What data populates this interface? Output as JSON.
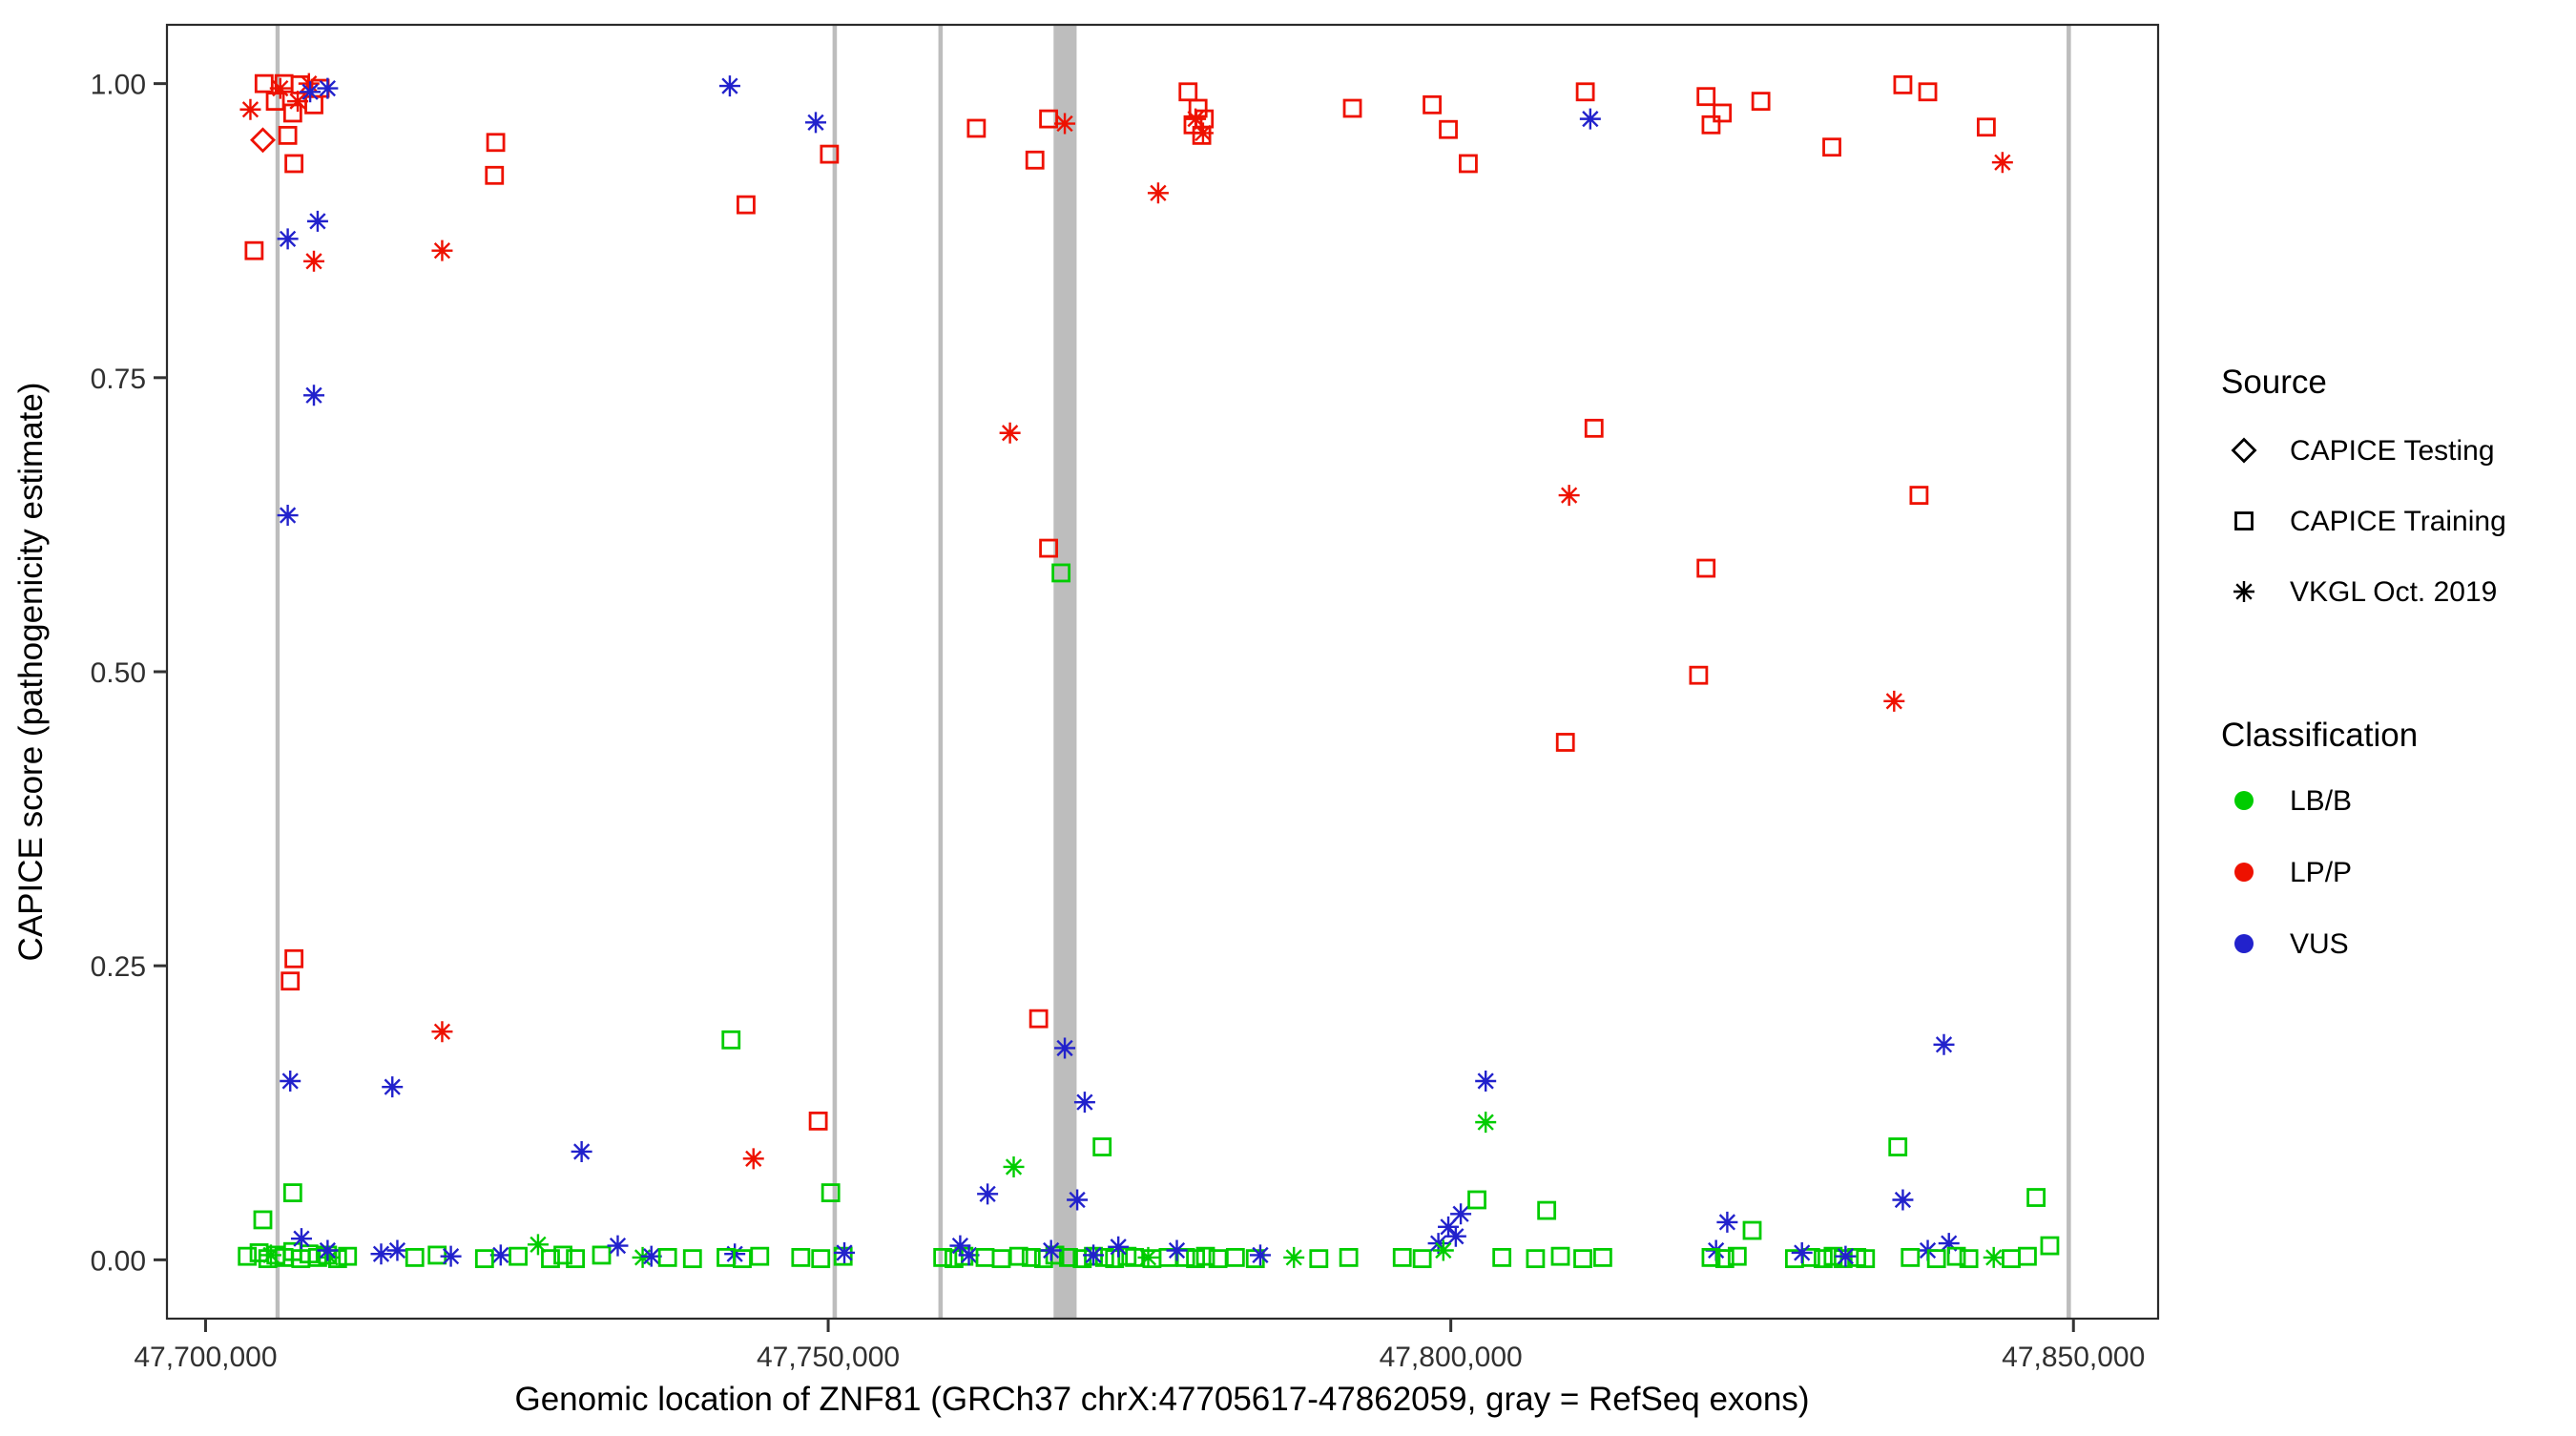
{
  "chart_data": {
    "type": "scatter",
    "title": "",
    "xlabel": "Genomic location of ZNF81 (GRCh37 chrX:47705617-47862059, gray = RefSeq exons)",
    "ylabel": "CAPICE score (pathogenicity estimate)",
    "xlim": [
      47696900,
      47856800
    ],
    "ylim": [
      -0.05,
      1.05
    ],
    "grid": false,
    "x_ticks": [
      {
        "value": 47700000,
        "label": "47,700,000"
      },
      {
        "value": 47750000,
        "label": "47,750,000"
      },
      {
        "value": 47800000,
        "label": "47,800,000"
      },
      {
        "value": 47850000,
        "label": "47,850,000"
      }
    ],
    "y_ticks": [
      {
        "value": 0.0,
        "label": "0.00"
      },
      {
        "value": 0.25,
        "label": "0.25"
      },
      {
        "value": 0.5,
        "label": "0.50"
      },
      {
        "value": 0.75,
        "label": "0.75"
      },
      {
        "value": 1.0,
        "label": "1.00"
      }
    ],
    "exon_color": "#bdbdbd",
    "exons": [
      {
        "start": 47705617,
        "end": 47705950
      },
      {
        "start": 47750350,
        "end": 47750700
      },
      {
        "start": 47758850,
        "end": 47759200
      },
      {
        "start": 47768100,
        "end": 47769950
      },
      {
        "start": 47849450,
        "end": 47849800
      }
    ],
    "colors": {
      "B": "#00CC00",
      "P": "#EE1100",
      "U": "#2222CC"
    },
    "class_labels": {
      "B": "LB/B",
      "P": "LP/P",
      "U": "VUS"
    },
    "marker_map": {
      "test": "diamond",
      "train": "square",
      "vkgl": "asterisk"
    },
    "legend": {
      "source": {
        "title": "Source",
        "items": [
          {
            "label": "CAPICE Testing",
            "marker": "diamond"
          },
          {
            "label": "CAPICE Training",
            "marker": "square"
          },
          {
            "label": "VKGL Oct. 2019",
            "marker": "asterisk"
          }
        ]
      },
      "classification": {
        "title": "Classification",
        "items": [
          {
            "label": "LB/B",
            "code": "B"
          },
          {
            "label": "LP/P",
            "code": "P"
          },
          {
            "label": "VUS",
            "code": "U"
          }
        ]
      }
    },
    "points_format": [
      "genomic_position",
      "capice_score",
      "source",
      "classification"
    ],
    "points": [
      [
        47704700,
        1.0,
        "train",
        "P"
      ],
      [
        47706300,
        1.0,
        "train",
        "P"
      ],
      [
        47707600,
        0.999,
        "train",
        "P"
      ],
      [
        47709200,
        0.996,
        "train",
        "P"
      ],
      [
        47705600,
        0.985,
        "train",
        "P"
      ],
      [
        47708700,
        0.982,
        "train",
        "P"
      ],
      [
        47707000,
        0.975,
        "train",
        "P"
      ],
      [
        47706600,
        0.956,
        "train",
        "P"
      ],
      [
        47707100,
        0.932,
        "train",
        "P"
      ],
      [
        47703600,
        0.978,
        "vkgl",
        "P"
      ],
      [
        47706000,
        0.996,
        "vkgl",
        "P"
      ],
      [
        47708300,
        1.0,
        "vkgl",
        "P"
      ],
      [
        47707400,
        0.985,
        "vkgl",
        "P"
      ],
      [
        47708700,
        0.849,
        "vkgl",
        "P"
      ],
      [
        47708400,
        0.993,
        "vkgl",
        "U"
      ],
      [
        47709800,
        0.996,
        "vkgl",
        "U"
      ],
      [
        47706600,
        0.868,
        "vkgl",
        "U"
      ],
      [
        47709000,
        0.883,
        "vkgl",
        "U"
      ],
      [
        47708700,
        0.735,
        "vkgl",
        "U"
      ],
      [
        47706600,
        0.633,
        "vkgl",
        "U"
      ],
      [
        47706800,
        0.152,
        "vkgl",
        "U"
      ],
      [
        47704600,
        0.952,
        "test",
        "P"
      ],
      [
        47707100,
        0.256,
        "train",
        "P"
      ],
      [
        47706800,
        0.237,
        "train",
        "P"
      ],
      [
        47703900,
        0.858,
        "train",
        "P"
      ],
      [
        47704600,
        0.034,
        "train",
        "B"
      ],
      [
        47707000,
        0.057,
        "train",
        "B"
      ],
      [
        47703350,
        0.003,
        "train",
        "B"
      ],
      [
        47704300,
        0.006,
        "train",
        "B"
      ],
      [
        47705000,
        0.001,
        "train",
        "B"
      ],
      [
        47705650,
        0.004,
        "train",
        "B"
      ],
      [
        47706300,
        0.002,
        "train",
        "B"
      ],
      [
        47707000,
        0.007,
        "train",
        "B"
      ],
      [
        47707650,
        0.001,
        "train",
        "B"
      ],
      [
        47708300,
        0.005,
        "train",
        "B"
      ],
      [
        47709000,
        0.002,
        "train",
        "B"
      ],
      [
        47709800,
        0.004,
        "train",
        "B"
      ],
      [
        47710600,
        0.001,
        "train",
        "B"
      ],
      [
        47711400,
        0.003,
        "train",
        "B"
      ],
      [
        47705250,
        0.004,
        "vkgl",
        "B"
      ],
      [
        47710000,
        0.002,
        "vkgl",
        "B"
      ],
      [
        47707700,
        0.018,
        "vkgl",
        "U"
      ],
      [
        47709800,
        0.008,
        "vkgl",
        "U"
      ],
      [
        47714100,
        0.005,
        "vkgl",
        "U"
      ],
      [
        47715400,
        0.008,
        "vkgl",
        "U"
      ],
      [
        47715000,
        0.147,
        "vkgl",
        "U"
      ],
      [
        47719000,
        0.858,
        "vkgl",
        "P"
      ],
      [
        47719000,
        0.194,
        "vkgl",
        "P"
      ],
      [
        47716800,
        0.002,
        "train",
        "B"
      ],
      [
        47718600,
        0.004,
        "train",
        "B"
      ],
      [
        47723300,
        0.95,
        "train",
        "P"
      ],
      [
        47723200,
        0.922,
        "train",
        "P"
      ],
      [
        47719700,
        0.003,
        "vkgl",
        "U"
      ],
      [
        47723700,
        0.004,
        "vkgl",
        "U"
      ],
      [
        47722400,
        0.001,
        "train",
        "B"
      ],
      [
        47725100,
        0.003,
        "train",
        "B"
      ],
      [
        47726700,
        0.013,
        "vkgl",
        "B"
      ],
      [
        47727700,
        0.001,
        "train",
        "B"
      ],
      [
        47728700,
        0.004,
        "train",
        "B"
      ],
      [
        47729700,
        0.001,
        "train",
        "B"
      ],
      [
        47731800,
        0.004,
        "train",
        "B"
      ],
      [
        47733100,
        0.012,
        "vkgl",
        "U"
      ],
      [
        47735100,
        0.002,
        "vkgl",
        "B"
      ],
      [
        47735800,
        0.003,
        "vkgl",
        "U"
      ],
      [
        47737100,
        0.002,
        "train",
        "B"
      ],
      [
        47739100,
        0.001,
        "train",
        "B"
      ],
      [
        47730200,
        0.092,
        "vkgl",
        "U"
      ],
      [
        47742100,
        0.998,
        "vkgl",
        "U"
      ],
      [
        47742200,
        0.187,
        "train",
        "B"
      ],
      [
        47743400,
        0.897,
        "train",
        "P"
      ],
      [
        47744000,
        0.086,
        "vkgl",
        "P"
      ],
      [
        47742500,
        0.005,
        "vkgl",
        "U"
      ],
      [
        47741800,
        0.002,
        "train",
        "B"
      ],
      [
        47743100,
        0.001,
        "train",
        "B"
      ],
      [
        47744500,
        0.003,
        "train",
        "B"
      ],
      [
        47749000,
        0.967,
        "vkgl",
        "U"
      ],
      [
        47750100,
        0.94,
        "train",
        "P"
      ],
      [
        47749200,
        0.118,
        "train",
        "P"
      ],
      [
        47750200,
        0.057,
        "train",
        "B"
      ],
      [
        47747800,
        0.002,
        "train",
        "B"
      ],
      [
        47749400,
        0.001,
        "train",
        "B"
      ],
      [
        47751200,
        0.003,
        "train",
        "B"
      ],
      [
        47751300,
        0.006,
        "vkgl",
        "U"
      ],
      [
        47759200,
        0.002,
        "train",
        "B"
      ],
      [
        47760100,
        0.001,
        "train",
        "B"
      ],
      [
        47760900,
        0.003,
        "train",
        "B"
      ],
      [
        47760600,
        0.012,
        "vkgl",
        "U"
      ],
      [
        47761300,
        0.004,
        "vkgl",
        "U"
      ],
      [
        47761900,
        0.962,
        "train",
        "P"
      ],
      [
        47762800,
        0.056,
        "vkgl",
        "U"
      ],
      [
        47764900,
        0.079,
        "vkgl",
        "B"
      ],
      [
        47764600,
        0.703,
        "vkgl",
        "P"
      ],
      [
        47766600,
        0.935,
        "train",
        "P"
      ],
      [
        47767700,
        0.97,
        "train",
        "P"
      ],
      [
        47769000,
        0.966,
        "vkgl",
        "P"
      ],
      [
        47767700,
        0.605,
        "train",
        "P"
      ],
      [
        47768700,
        0.584,
        "train",
        "B"
      ],
      [
        47766900,
        0.205,
        "train",
        "P"
      ],
      [
        47769000,
        0.18,
        "vkgl",
        "U"
      ],
      [
        47770600,
        0.134,
        "vkgl",
        "U"
      ],
      [
        47772000,
        0.096,
        "train",
        "B"
      ],
      [
        47770000,
        0.051,
        "vkgl",
        "U"
      ],
      [
        47762600,
        0.002,
        "train",
        "B"
      ],
      [
        47763900,
        0.001,
        "train",
        "B"
      ],
      [
        47765300,
        0.003,
        "train",
        "B"
      ],
      [
        47766300,
        0.002,
        "train",
        "B"
      ],
      [
        47767300,
        0.001,
        "train",
        "B"
      ],
      [
        47768200,
        0.004,
        "train",
        "B"
      ],
      [
        47769300,
        0.002,
        "train",
        "B"
      ],
      [
        47770400,
        0.001,
        "train",
        "B"
      ],
      [
        47771300,
        0.003,
        "train",
        "B"
      ],
      [
        47772200,
        0.002,
        "train",
        "B"
      ],
      [
        47773000,
        0.001,
        "train",
        "B"
      ],
      [
        47774000,
        0.003,
        "train",
        "B"
      ],
      [
        47774600,
        0.002,
        "train",
        "B"
      ],
      [
        47776000,
        0.001,
        "train",
        "B"
      ],
      [
        47777300,
        0.002,
        "train",
        "B"
      ],
      [
        47767900,
        0.008,
        "vkgl",
        "U"
      ],
      [
        47771300,
        0.004,
        "vkgl",
        "U"
      ],
      [
        47773300,
        0.011,
        "vkgl",
        "U"
      ],
      [
        47775700,
        0.002,
        "vkgl",
        "B"
      ],
      [
        47776500,
        0.907,
        "vkgl",
        "P"
      ],
      [
        47778900,
        0.993,
        "train",
        "P"
      ],
      [
        47779700,
        0.979,
        "train",
        "P"
      ],
      [
        47779300,
        0.965,
        "train",
        "P"
      ],
      [
        47780200,
        0.97,
        "train",
        "P"
      ],
      [
        47780000,
        0.956,
        "train",
        "P"
      ],
      [
        47779500,
        0.97,
        "vkgl",
        "P"
      ],
      [
        47780100,
        0.958,
        "vkgl",
        "P"
      ],
      [
        47778700,
        0.002,
        "train",
        "B"
      ],
      [
        47779500,
        0.001,
        "train",
        "B"
      ],
      [
        47780300,
        0.003,
        "train",
        "B"
      ],
      [
        47781300,
        0.001,
        "train",
        "B"
      ],
      [
        47782700,
        0.002,
        "train",
        "B"
      ],
      [
        47784300,
        0.001,
        "train",
        "B"
      ],
      [
        47778000,
        0.008,
        "vkgl",
        "U"
      ],
      [
        47784700,
        0.004,
        "vkgl",
        "U"
      ],
      [
        47787400,
        0.002,
        "vkgl",
        "B"
      ],
      [
        47789400,
        0.001,
        "train",
        "B"
      ],
      [
        47792100,
        0.979,
        "train",
        "P"
      ],
      [
        47791800,
        0.002,
        "train",
        "B"
      ],
      [
        47798500,
        0.982,
        "train",
        "P"
      ],
      [
        47799800,
        0.961,
        "train",
        "P"
      ],
      [
        47801400,
        0.932,
        "train",
        "P"
      ],
      [
        47796100,
        0.002,
        "train",
        "B"
      ],
      [
        47797700,
        0.001,
        "train",
        "B"
      ],
      [
        47799000,
        0.014,
        "vkgl",
        "U"
      ],
      [
        47799800,
        0.028,
        "vkgl",
        "U"
      ],
      [
        47800400,
        0.02,
        "vkgl",
        "U"
      ],
      [
        47800800,
        0.039,
        "vkgl",
        "U"
      ],
      [
        47799400,
        0.008,
        "vkgl",
        "B"
      ],
      [
        47802800,
        0.152,
        "vkgl",
        "U"
      ],
      [
        47802800,
        0.117,
        "vkgl",
        "B"
      ],
      [
        47802100,
        0.051,
        "train",
        "B"
      ],
      [
        47804100,
        0.002,
        "train",
        "B"
      ],
      [
        47807700,
        0.042,
        "train",
        "B"
      ],
      [
        47806800,
        0.001,
        "train",
        "B"
      ],
      [
        47808800,
        0.003,
        "train",
        "B"
      ],
      [
        47810600,
        0.001,
        "train",
        "B"
      ],
      [
        47812200,
        0.002,
        "train",
        "B"
      ],
      [
        47809200,
        0.44,
        "train",
        "P"
      ],
      [
        47809500,
        0.65,
        "vkgl",
        "P"
      ],
      [
        47811500,
        0.707,
        "train",
        "P"
      ],
      [
        47810800,
        0.993,
        "train",
        "P"
      ],
      [
        47811200,
        0.97,
        "vkgl",
        "U"
      ],
      [
        47820500,
        0.989,
        "train",
        "P"
      ],
      [
        47820900,
        0.965,
        "train",
        "P"
      ],
      [
        47821800,
        0.975,
        "train",
        "P"
      ],
      [
        47824900,
        0.985,
        "train",
        "P"
      ],
      [
        47820500,
        0.588,
        "train",
        "P"
      ],
      [
        47819900,
        0.497,
        "train",
        "P"
      ],
      [
        47822200,
        0.032,
        "vkgl",
        "U"
      ],
      [
        47821300,
        0.008,
        "vkgl",
        "U"
      ],
      [
        47820900,
        0.002,
        "train",
        "B"
      ],
      [
        47822000,
        0.001,
        "train",
        "B"
      ],
      [
        47823000,
        0.003,
        "train",
        "B"
      ],
      [
        47824200,
        0.025,
        "train",
        "B"
      ],
      [
        47830600,
        0.946,
        "train",
        "P"
      ],
      [
        47827600,
        0.001,
        "train",
        "B"
      ],
      [
        47828900,
        0.002,
        "train",
        "B"
      ],
      [
        47829900,
        0.001,
        "train",
        "B"
      ],
      [
        47830700,
        0.003,
        "train",
        "B"
      ],
      [
        47831500,
        0.001,
        "train",
        "B"
      ],
      [
        47832600,
        0.002,
        "train",
        "B"
      ],
      [
        47833300,
        0.001,
        "train",
        "B"
      ],
      [
        47828200,
        0.006,
        "vkgl",
        "U"
      ],
      [
        47831700,
        0.003,
        "vkgl",
        "U"
      ],
      [
        47836300,
        0.999,
        "train",
        "P"
      ],
      [
        47838300,
        0.993,
        "train",
        "P"
      ],
      [
        47837600,
        0.65,
        "train",
        "P"
      ],
      [
        47835600,
        0.475,
        "vkgl",
        "P"
      ],
      [
        47835900,
        0.096,
        "train",
        "B"
      ],
      [
        47836300,
        0.051,
        "vkgl",
        "U"
      ],
      [
        47839600,
        0.183,
        "vkgl",
        "U"
      ],
      [
        47838300,
        0.008,
        "vkgl",
        "U"
      ],
      [
        47840000,
        0.014,
        "vkgl",
        "U"
      ],
      [
        47836900,
        0.002,
        "train",
        "B"
      ],
      [
        47839000,
        0.001,
        "train",
        "B"
      ],
      [
        47840600,
        0.003,
        "train",
        "B"
      ],
      [
        47841600,
        0.001,
        "train",
        "B"
      ],
      [
        47843000,
        0.963,
        "train",
        "P"
      ],
      [
        47844300,
        0.933,
        "vkgl",
        "P"
      ],
      [
        47843600,
        0.002,
        "vkgl",
        "B"
      ],
      [
        47845000,
        0.001,
        "train",
        "B"
      ],
      [
        47846300,
        0.003,
        "train",
        "B"
      ],
      [
        47847000,
        0.053,
        "train",
        "B"
      ],
      [
        47848100,
        0.012,
        "train",
        "B"
      ]
    ]
  }
}
